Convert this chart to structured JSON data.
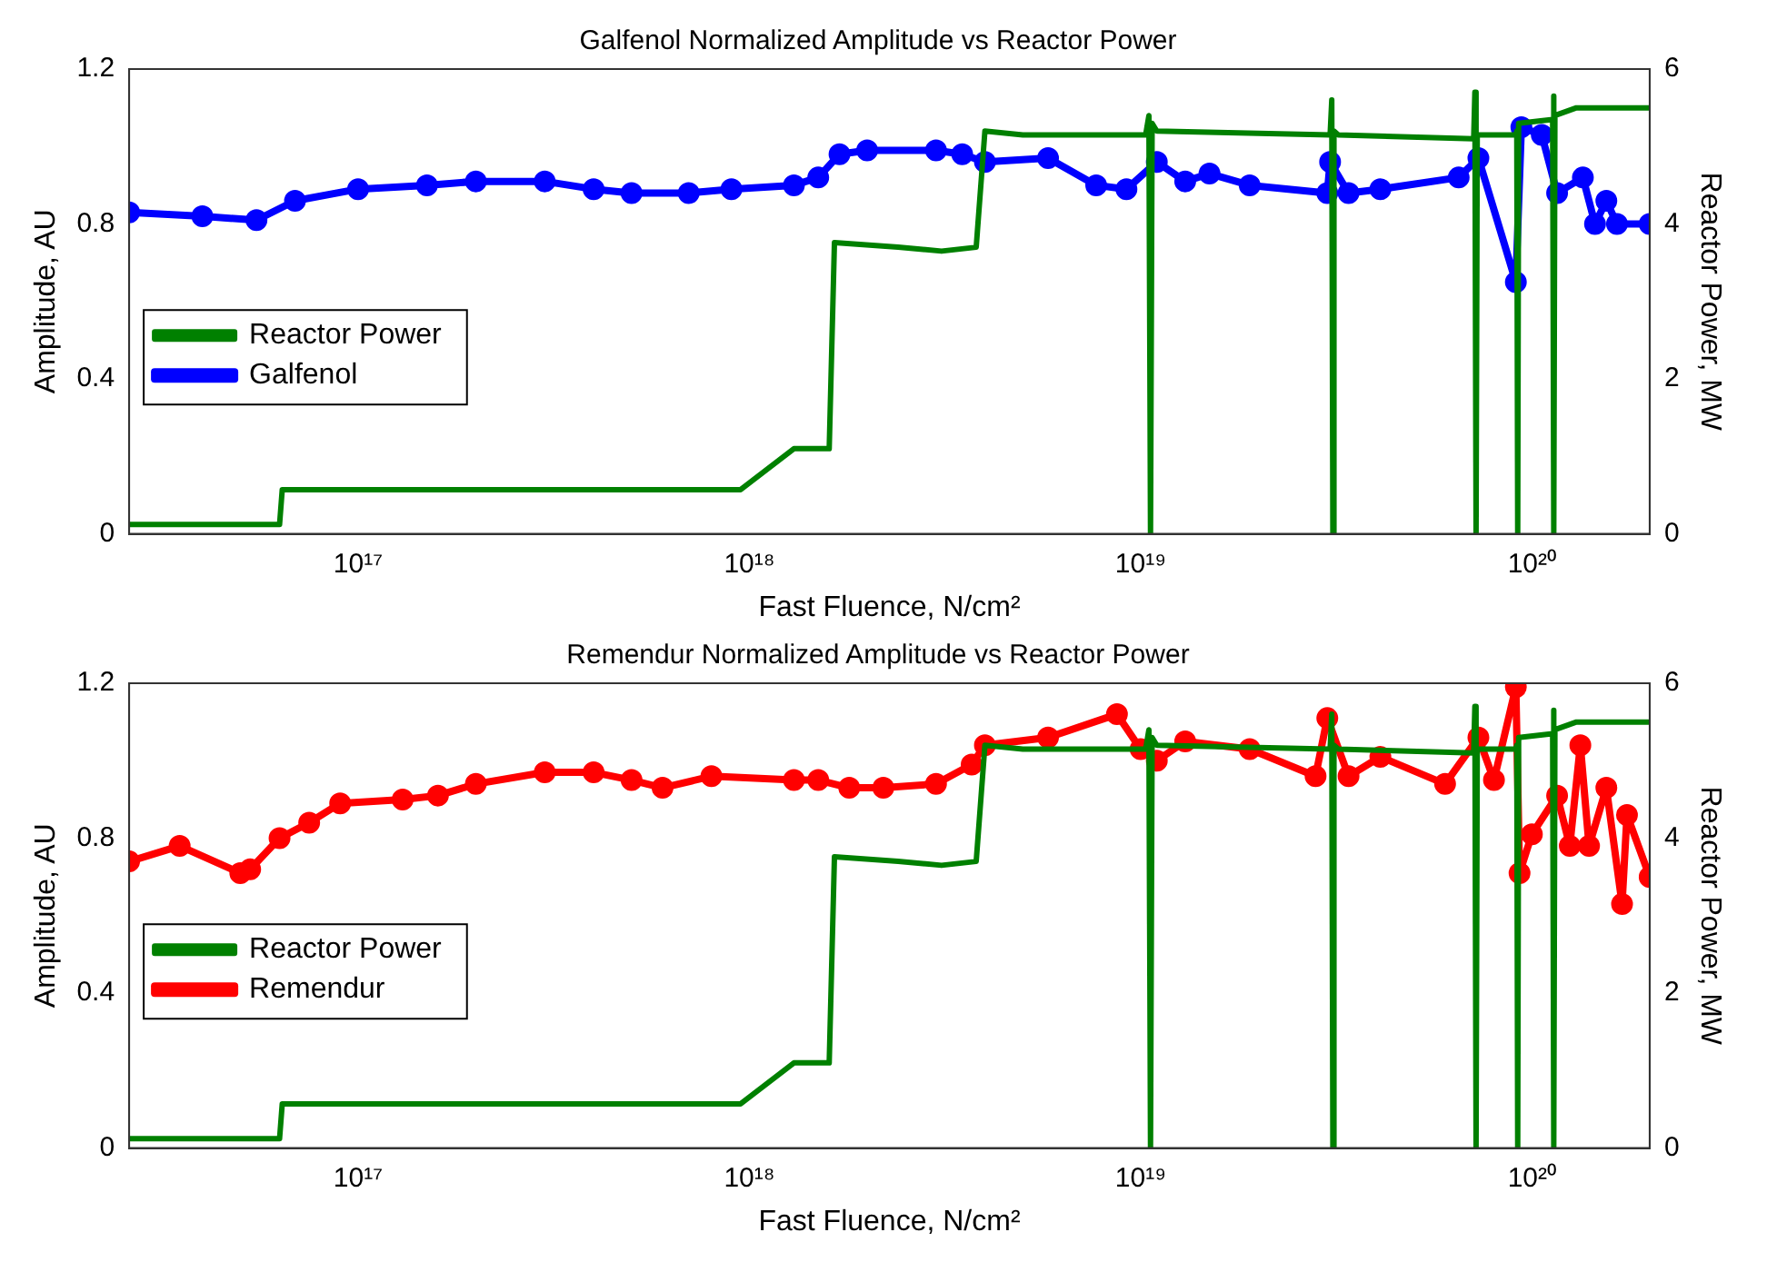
{
  "chart_data": [
    {
      "type": "line",
      "title": "Galfenol Normalized Amplitude vs Reactor Power",
      "xlabel": "Fast Fluence, N/cm²",
      "ylabel": "Amplitude, AU",
      "y2label": "Reactor Power, MW",
      "log": "x",
      "grid": false,
      "legend": "left",
      "xlim": [
        2.6e+16,
        2e+20
      ],
      "xticks": [
        {
          "value": 1e+17,
          "label": "10¹⁷"
        },
        {
          "value": 1e+18,
          "label": "10¹⁸"
        },
        {
          "value": 1e+19,
          "label": "10¹⁹"
        },
        {
          "value": 1e+20,
          "label": "10²⁰"
        }
      ],
      "ylim": [
        0,
        1.2
      ],
      "yticks": [
        0,
        0.4,
        0.8,
        1.2
      ],
      "y2lim": [
        0,
        6
      ],
      "y2ticks": [
        0,
        2,
        4,
        6
      ],
      "series": [
        {
          "name": "Galfenol",
          "color": "#0000ff",
          "marker": "circle",
          "x": [
            2.6e+16,
            4e+16,
            5.5e+16,
            6.9e+16,
            1e+17,
            1.5e+17,
            2e+17,
            3e+17,
            4e+17,
            5e+17,
            7e+17,
            9e+17,
            1.3e+18,
            1.5e+18,
            1.7e+18,
            2e+18,
            3e+18,
            3.5e+18,
            4e+18,
            5.8e+18,
            7.7e+18,
            9.2e+18,
            1.1e+19,
            1.3e+19,
            1.5e+19,
            1.9e+19,
            3e+19,
            3.05e+19,
            3.4e+19,
            4.1e+19,
            6.5e+19,
            7.3e+19,
            9.1e+19,
            9.4e+19,
            1.06e+20,
            1.16e+20,
            1.35e+20,
            1.45e+20,
            1.55e+20,
            1.65e+20,
            2e+20
          ],
          "values": [
            0.83,
            0.82,
            0.81,
            0.86,
            0.89,
            0.9,
            0.91,
            0.91,
            0.89,
            0.88,
            0.88,
            0.89,
            0.9,
            0.92,
            0.98,
            0.99,
            0.99,
            0.98,
            0.96,
            0.97,
            0.9,
            0.89,
            0.96,
            0.91,
            0.93,
            0.9,
            0.88,
            0.96,
            0.88,
            0.89,
            0.92,
            0.97,
            0.65,
            1.05,
            1.03,
            0.88,
            0.92,
            0.8,
            0.86,
            0.8,
            0.8
          ]
        },
        {
          "name": "Reactor Power",
          "color": "#008000",
          "marker": "none",
          "axis": "y2",
          "x": [
            2.6e+16,
            6.3e+16,
            6.4e+16,
            9.5e+17,
            1.3e+18,
            1.6e+18,
            1.65e+18,
            2.4e+18,
            3.1e+18,
            3.8e+18,
            4e+18,
            5e+18,
            1.03e+19,
            1.05e+19,
            1.06e+19,
            1.07e+19,
            1.1e+19,
            3.05e+19,
            3.08e+19,
            3.1e+19,
            3.12e+19,
            3.2e+19,
            7.1e+19,
            7.15e+19,
            7.2e+19,
            7.25e+19,
            9.1e+19,
            9.15e+19,
            9.2e+19,
            9.25e+19,
            1.13e+20,
            1.135e+20,
            1.14e+20,
            1.145e+20,
            1.3e+20,
            2e+20
          ],
          "values": [
            0.12,
            0.12,
            0.57,
            0.57,
            1.1,
            1.1,
            3.76,
            3.7,
            3.65,
            3.7,
            5.2,
            5.15,
            5.15,
            5.4,
            0,
            5.3,
            5.2,
            5.15,
            5.6,
            0,
            5.2,
            5.15,
            5.1,
            5.7,
            0,
            5.15,
            5.15,
            5.2,
            0,
            5.3,
            5.35,
            5.65,
            0,
            5.4,
            5.5,
            5.5
          ]
        }
      ]
    },
    {
      "type": "line",
      "title": "Remendur Normalized Amplitude vs Reactor Power",
      "xlabel": "Fast Fluence, N/cm²",
      "ylabel": "Amplitude, AU",
      "y2label": "Reactor Power, MW",
      "log": "x",
      "grid": false,
      "legend": "left",
      "xlim": [
        2.6e+16,
        2e+20
      ],
      "xticks": [
        {
          "value": 1e+17,
          "label": "10¹⁷"
        },
        {
          "value": 1e+18,
          "label": "10¹⁸"
        },
        {
          "value": 1e+19,
          "label": "10¹⁹"
        },
        {
          "value": 1e+20,
          "label": "10²⁰"
        }
      ],
      "ylim": [
        0,
        1.2
      ],
      "yticks": [
        0,
        0.4,
        0.8,
        1.2
      ],
      "y2lim": [
        0,
        6
      ],
      "y2ticks": [
        0,
        2,
        4,
        6
      ],
      "series": [
        {
          "name": "Remendur",
          "color": "#ff0000",
          "marker": "circle",
          "x": [
            2.6e+16,
            3.5e+16,
            5e+16,
            5.3e+16,
            6.3e+16,
            7.5e+16,
            9e+16,
            1.3e+17,
            1.6e+17,
            2e+17,
            3e+17,
            4e+17,
            5e+17,
            6e+17,
            8e+17,
            1.3e+18,
            1.5e+18,
            1.8e+18,
            2.2e+18,
            3e+18,
            3.7e+18,
            4e+18,
            5.8e+18,
            8.7e+18,
            1e+19,
            1.1e+19,
            1.3e+19,
            1.9e+19,
            2.8e+19,
            3e+19,
            3.4e+19,
            4.1e+19,
            6e+19,
            7.3e+19,
            8e+19,
            9.1e+19,
            9.3e+19,
            1e+20,
            1.16e+20,
            1.25e+20,
            1.33e+20,
            1.4e+20,
            1.55e+20,
            1.7e+20,
            1.75e+20,
            2e+20
          ],
          "values": [
            0.74,
            0.78,
            0.71,
            0.72,
            0.8,
            0.84,
            0.89,
            0.9,
            0.91,
            0.94,
            0.97,
            0.97,
            0.95,
            0.93,
            0.96,
            0.95,
            0.95,
            0.93,
            0.93,
            0.94,
            0.99,
            1.04,
            1.06,
            1.12,
            1.03,
            1.0,
            1.05,
            1.03,
            0.96,
            1.11,
            0.96,
            1.01,
            0.94,
            1.06,
            0.95,
            1.19,
            0.71,
            0.81,
            0.91,
            0.78,
            1.04,
            0.78,
            0.93,
            0.63,
            0.86,
            0.7
          ]
        },
        {
          "name": "Reactor Power",
          "color": "#008000",
          "marker": "none",
          "axis": "y2",
          "x": [
            2.6e+16,
            6.3e+16,
            6.4e+16,
            9.5e+17,
            1.3e+18,
            1.6e+18,
            1.65e+18,
            2.4e+18,
            3.1e+18,
            3.8e+18,
            4e+18,
            5e+18,
            1.03e+19,
            1.05e+19,
            1.06e+19,
            1.07e+19,
            1.1e+19,
            3.05e+19,
            3.08e+19,
            3.1e+19,
            3.12e+19,
            3.2e+19,
            7.1e+19,
            7.15e+19,
            7.2e+19,
            7.25e+19,
            9.1e+19,
            9.15e+19,
            9.2e+19,
            9.25e+19,
            1.13e+20,
            1.135e+20,
            1.14e+20,
            1.145e+20,
            1.3e+20,
            2e+20
          ],
          "values": [
            0.12,
            0.12,
            0.57,
            0.57,
            1.1,
            1.1,
            3.76,
            3.7,
            3.65,
            3.7,
            5.2,
            5.15,
            5.15,
            5.4,
            0,
            5.3,
            5.2,
            5.15,
            5.6,
            0,
            5.2,
            5.15,
            5.1,
            5.7,
            0,
            5.15,
            5.15,
            5.2,
            0,
            5.3,
            5.35,
            5.65,
            0,
            5.4,
            5.5,
            5.5
          ]
        }
      ]
    }
  ]
}
